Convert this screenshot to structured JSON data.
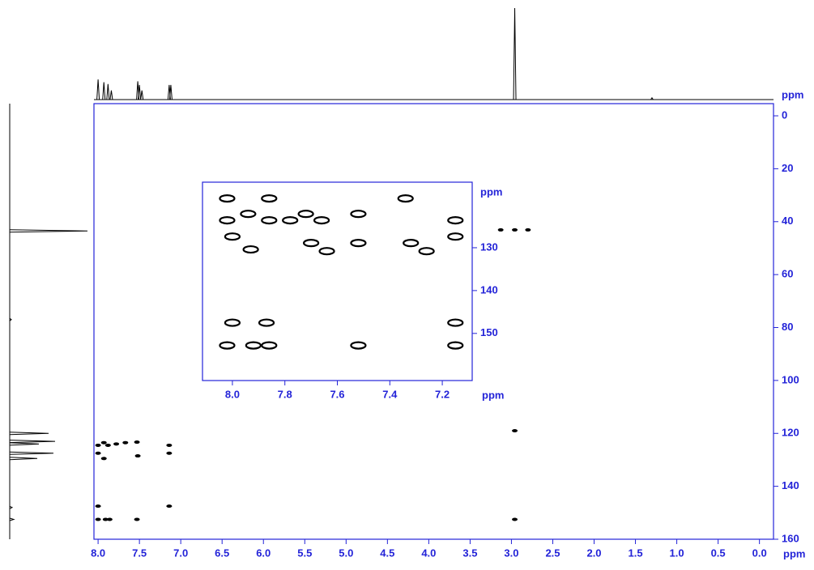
{
  "chart_data": [
    {
      "type": "scatter",
      "axis_color": "#2323d8",
      "color": "#000000",
      "x_label": "ppm",
      "y_label": "ppm",
      "xlim": [
        8.05,
        -0.17
      ],
      "ylim": [
        160,
        -4.6
      ],
      "xticks": [
        {
          "value": 8,
          "label": "8.0"
        },
        7.5,
        {
          "value": 7,
          "label": "7.0"
        },
        6.5,
        {
          "value": 6,
          "label": "6.0"
        },
        5.5,
        {
          "value": 5,
          "label": "5.0"
        },
        4.5,
        {
          "value": 4,
          "label": "4.0"
        },
        3.5,
        {
          "value": 3,
          "label": "3.0"
        },
        2.5,
        {
          "value": 2,
          "label": "2.0"
        },
        1.5,
        {
          "value": 1,
          "label": "1.0"
        },
        0.5,
        {
          "value": 0,
          "label": "0.0"
        }
      ],
      "yticks": [
        0,
        20,
        40,
        60,
        80,
        100,
        120,
        140,
        160
      ],
      "x": [
        8.0,
        7.93,
        7.88,
        7.78,
        7.67,
        7.53,
        7.14,
        8.0,
        7.93,
        7.52,
        7.14,
        8.0,
        7.14,
        8.0,
        7.91,
        7.86,
        7.53,
        2.96,
        2.96,
        3.13,
        2.96,
        2.8
      ],
      "values": [
        124.5,
        123.5,
        124.5,
        124,
        123.5,
        123.3,
        124.5,
        127.5,
        129.5,
        128.5,
        127.5,
        147.5,
        147.5,
        152.5,
        152.5,
        152.5,
        152.5,
        119,
        152.5,
        43.1,
        43.1,
        43.1
      ]
    },
    {
      "type": "scatter",
      "axis_color": "#2323d8",
      "color": "#000000",
      "x_label": "ppm",
      "y_label": "ppm",
      "xlim": [
        8.114,
        7.086
      ],
      "ylim": [
        161,
        114.7
      ],
      "xticks": [
        {
          "value": 8,
          "label": "8.0"
        },
        7.8,
        7.6,
        7.4,
        7.2
      ],
      "yticks": [
        130,
        140,
        150
      ],
      "x": [
        8.02,
        8.02,
        7.94,
        7.86,
        7.86,
        7.78,
        7.72,
        7.66,
        7.52,
        7.34,
        8.0,
        7.93,
        7.7,
        7.64,
        7.52,
        7.32,
        7.26,
        7.15,
        7.15,
        8.0,
        7.87,
        7.15,
        8.02,
        7.92,
        7.86,
        7.52,
        7.15
      ],
      "values": [
        118.5,
        123.6,
        122.1,
        118.5,
        123.6,
        123.6,
        122.1,
        123.6,
        122.1,
        118.5,
        127.4,
        130.4,
        128.9,
        130.8,
        128.9,
        128.9,
        130.8,
        123.6,
        127.4,
        147.5,
        147.5,
        147.5,
        152.8,
        152.8,
        152.8,
        152.8,
        152.8
      ]
    },
    {
      "type": "spectrum",
      "orientation": "horizontal",
      "color": "#000000",
      "xlim": [
        8.05,
        -0.17
      ],
      "ylim": [
        0,
        100
      ],
      "x": [
        8.0,
        7.93,
        7.88,
        7.84,
        7.52,
        7.5,
        7.47,
        7.14,
        7.12,
        2.96,
        1.3
      ],
      "values": [
        22,
        19,
        17,
        10,
        20,
        16,
        10,
        16,
        16,
        100,
        2
      ]
    },
    {
      "type": "spectrum",
      "orientation": "vertical",
      "color": "#000000",
      "xlim": [
        160,
        -4.6
      ],
      "ylim": [
        0,
        100
      ],
      "x": [
        43.5,
        77,
        120,
        123,
        124,
        127.5,
        129.5,
        148,
        152.5
      ],
      "values": [
        96,
        2,
        48,
        56,
        36,
        54,
        34,
        3,
        5
      ]
    }
  ]
}
